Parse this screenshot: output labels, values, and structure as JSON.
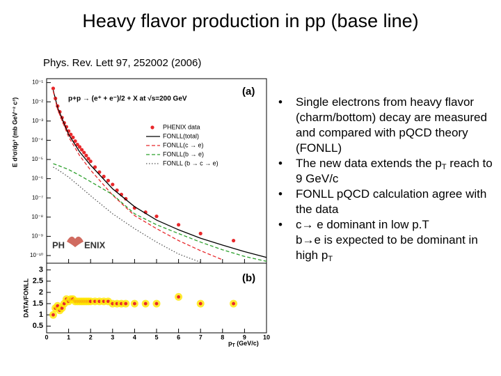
{
  "title": "Heavy flavor production in pp (base line)",
  "reference": "Phys. Rev. Lett 97, 252002 (2006)",
  "bullets": [
    [
      [
        "Single electrons from heavy flavor (charm/bottom) decay are measured and compared with pQCD theory (FONLL)"
      ]
    ],
    [
      [
        "The new data extends the p",
        {
          "text": "T",
          "sub": true
        },
        " reach to 9 GeV/c"
      ]
    ],
    [
      [
        "FONLL pQCD calculation agree with the data"
      ]
    ],
    [
      [
        "c→ e dominant in low p.T"
      ],
      [
        "b→e is expected to be dominant in high p",
        {
          "text": "T",
          "sub": true
        }
      ]
    ]
  ],
  "chart_data": [
    {
      "type": "line",
      "ylabel": "E d³σ/dp³ (mb GeV⁻² c³)",
      "annotation": "p+p → (e⁺ + e⁻)/2 + X at √s=200 GeV",
      "panel_label": "(a)",
      "logo": [
        "PH",
        "ENIX"
      ],
      "ylog": true,
      "grid": false,
      "legend": "right",
      "xlim": [
        0,
        10
      ],
      "ylim": [
        4e-11,
        0.16
      ],
      "yticks": [
        {
          "value": 0.1,
          "label": "10⁻¹"
        },
        {
          "value": 0.01,
          "label": "10⁻²"
        },
        {
          "value": 0.001,
          "label": "10⁻³"
        },
        {
          "value": 0.0001,
          "label": "10⁻⁴"
        },
        {
          "value": 1e-05,
          "label": "10⁻⁵"
        },
        {
          "value": 1e-06,
          "label": "10⁻⁶"
        },
        {
          "value": 1e-07,
          "label": "10⁻⁷"
        },
        {
          "value": 1e-08,
          "label": "10⁻⁸"
        },
        {
          "value": 1e-09,
          "label": "10⁻⁹"
        },
        {
          "value": 1e-10,
          "label": "10⁻¹⁰"
        }
      ],
      "series": [
        {
          "name": "PHENIX data",
          "color": "#e8282b",
          "marker": "circle",
          "x": [
            0.3,
            0.4,
            0.5,
            0.6,
            0.7,
            0.8,
            0.9,
            1.0,
            1.1,
            1.2,
            1.3,
            1.4,
            1.5,
            1.6,
            1.7,
            1.8,
            1.9,
            2.0,
            2.2,
            2.4,
            2.6,
            2.8,
            3.0,
            3.2,
            3.4,
            3.6,
            4.0,
            4.5,
            5.0,
            6.0,
            7.0,
            8.5
          ],
          "values": [
            0.05,
            0.015,
            0.006,
            0.003,
            0.0015,
            0.0008,
            0.0005,
            0.0003,
            0.0002,
            0.00014,
            9e-05,
            6e-05,
            4.5e-05,
            3.2e-05,
            2.3e-05,
            1.6e-05,
            1.1e-05,
            8e-06,
            4e-06,
            2.2e-06,
            1.3e-06,
            8e-07,
            5e-07,
            2.5e-07,
            1.5e-07,
            9e-08,
            3e-08,
            1.8e-08,
            1.1e-08,
            4e-09,
            1.4e-09,
            6e-10
          ]
        },
        {
          "name": "FONLL(total)",
          "color": "#000000",
          "dash": "solid",
          "x": [
            0.3,
            0.5,
            1,
            1.5,
            2,
            3,
            4,
            5,
            6,
            7,
            8,
            9,
            10
          ],
          "values": [
            0.04,
            0.005,
            0.0002,
            2.5e-05,
            5e-06,
            3e-07,
            3.5e-08,
            7e-09,
            2.2e-09,
            8e-10,
            3.5e-10,
            1.6e-10,
            8e-11
          ]
        },
        {
          "name": "FONLL(c → e)",
          "color": "#e8282b",
          "dash": "dashed",
          "x": [
            0.3,
            0.5,
            1,
            1.5,
            2,
            3,
            4,
            5,
            6,
            7,
            8,
            9,
            10
          ],
          "values": [
            0.035,
            0.004,
            0.00015,
            1.6e-05,
            2.8e-06,
            1.4e-07,
            1.2e-08,
            2.5e-09,
            6e-10,
            1.8e-10,
            6e-11,
            null,
            null
          ]
        },
        {
          "name": "FONLL(b → e)",
          "color": "#2ca02c",
          "dash": "dashed",
          "x": [
            0.3,
            0.5,
            1,
            1.5,
            2,
            3,
            4,
            5,
            6,
            7,
            8,
            9,
            10
          ],
          "values": [
            6e-06,
            5e-06,
            3e-06,
            1.5e-06,
            7e-07,
            1.5e-07,
            1.5e-08,
            4e-09,
            1.4e-09,
            5e-10,
            2e-10,
            9e-11,
            5e-11
          ]
        },
        {
          "name": "FONLL (b → c → e)",
          "color": "#555555",
          "dash": "dotted",
          "x": [
            0.3,
            0.5,
            1,
            1.5,
            2,
            3,
            4,
            5,
            6,
            7,
            8,
            9,
            10
          ],
          "values": [
            4e-06,
            3e-06,
            1.2e-06,
            4e-07,
            1.3e-07,
            1.5e-08,
            2.5e-09,
            5e-10,
            1.2e-10,
            4.5e-11,
            null,
            null,
            null
          ]
        }
      ]
    },
    {
      "type": "scatter",
      "ylabel": "DATA/FONLL",
      "xlabel": [
        "p",
        "T",
        " (GeV/c)"
      ],
      "panel_label": "(b)",
      "grid": false,
      "xlim": [
        0,
        10
      ],
      "ylim": [
        0.2,
        3.3
      ],
      "xticks": [
        0,
        1,
        2,
        3,
        4,
        5,
        6,
        7,
        8,
        9,
        10
      ],
      "yticks": [
        0.5,
        1,
        1.5,
        2,
        2.5,
        3
      ],
      "color": "#e8282b",
      "halo": "#ffe600",
      "x": [
        0.3,
        0.4,
        0.5,
        0.6,
        0.7,
        0.8,
        0.9,
        1.0,
        1.1,
        1.2,
        1.3,
        1.4,
        1.5,
        1.6,
        1.7,
        1.8,
        1.9,
        2.0,
        2.2,
        2.4,
        2.6,
        2.8,
        3.0,
        3.2,
        3.4,
        3.6,
        4.0,
        4.5,
        5.0,
        6.0,
        7.0,
        8.5
      ],
      "values": [
        1.0,
        1.3,
        1.4,
        1.2,
        1.3,
        1.5,
        1.7,
        1.6,
        1.7,
        1.7,
        1.6,
        1.6,
        1.6,
        1.6,
        1.6,
        1.6,
        1.6,
        1.6,
        1.6,
        1.6,
        1.6,
        1.6,
        1.5,
        1.5,
        1.5,
        1.5,
        1.5,
        1.5,
        1.5,
        1.8,
        1.5,
        1.5
      ]
    }
  ]
}
